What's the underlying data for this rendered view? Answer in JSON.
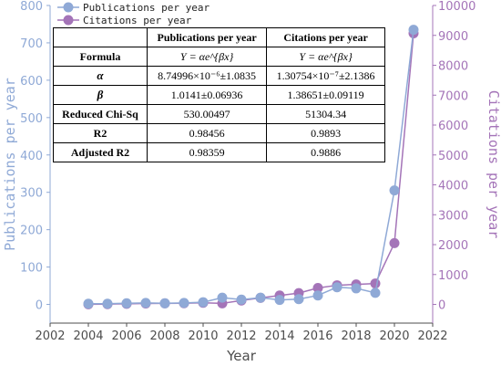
{
  "chart_data": {
    "type": "line",
    "xlabel": "Year",
    "ylabel_left": "Publications per year",
    "ylabel_right": "Citations per year",
    "xlim": [
      2002,
      2022
    ],
    "xticks": [
      2002,
      2004,
      2006,
      2008,
      2010,
      2012,
      2014,
      2016,
      2018,
      2020,
      2022
    ],
    "ylim_left": [
      -50,
      800
    ],
    "yticks_left": [
      0,
      100,
      200,
      300,
      400,
      500,
      600,
      700,
      800
    ],
    "ylim_right": [
      -625,
      10000
    ],
    "yticks_right": [
      0,
      1000,
      2000,
      3000,
      4000,
      5000,
      6000,
      7000,
      8000,
      9000,
      10000
    ],
    "legend_position": "top-left",
    "series": [
      {
        "name": "Publications per year",
        "axis": "left",
        "color": "#8fa9d6",
        "x": [
          2004,
          2005,
          2006,
          2007,
          2008,
          2009,
          2010,
          2011,
          2012,
          2013,
          2014,
          2015,
          2016,
          2017,
          2018,
          2019,
          2020,
          2021
        ],
        "y": [
          2,
          2,
          3,
          4,
          3,
          4,
          6,
          18,
          13,
          18,
          12,
          14,
          24,
          46,
          43,
          31,
          305,
          735
        ]
      },
      {
        "name": "Citations per year",
        "axis": "right",
        "color": "#a474b8",
        "x": [
          2004,
          2005,
          2006,
          2007,
          2008,
          2009,
          2010,
          2011,
          2012,
          2013,
          2014,
          2015,
          2016,
          2017,
          2018,
          2019,
          2020,
          2021
        ],
        "y": [
          5,
          10,
          20,
          30,
          35,
          40,
          55,
          35,
          130,
          220,
          300,
          380,
          550,
          640,
          670,
          700,
          2050,
          9070
        ]
      }
    ],
    "fit_table": {
      "header": [
        "",
        "Publications per year",
        "Citations per year"
      ],
      "rows": [
        {
          "label": "Formula",
          "values": [
            "Y = αe^{βx}",
            "Y = αe^{βx}"
          ]
        },
        {
          "label": "α",
          "values": [
            "8.74996×10⁻⁶±1.0835",
            "1.30754×10⁻⁷±2.1386"
          ]
        },
        {
          "label": "β",
          "values": [
            "1.0141±0.06936",
            "1.38651±0.09119"
          ]
        },
        {
          "label": "Reduced Chi-Sq",
          "values": [
            "530.00497",
            "51304.34"
          ]
        },
        {
          "label": "R2",
          "values": [
            "0.98456",
            "0.9893"
          ]
        },
        {
          "label": "Adjusted R2",
          "values": [
            "0.98359",
            "0.9886"
          ]
        }
      ]
    }
  }
}
